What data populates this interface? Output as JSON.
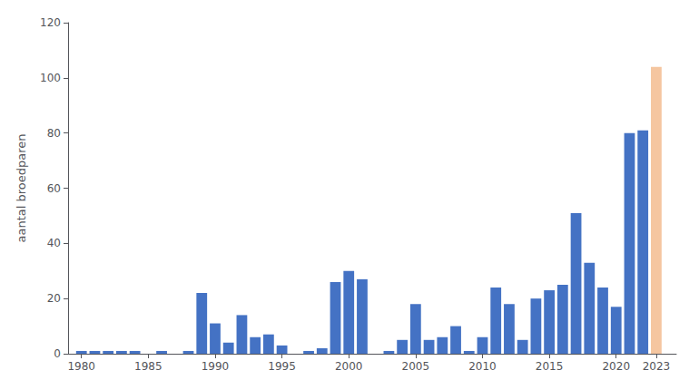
{
  "chart_data": {
    "type": "bar",
    "x": [
      1980,
      1981,
      1982,
      1983,
      1984,
      1985,
      1986,
      1987,
      1988,
      1989,
      1990,
      1991,
      1992,
      1993,
      1994,
      1995,
      1996,
      1997,
      1998,
      1999,
      2000,
      2001,
      2002,
      2003,
      2004,
      2005,
      2006,
      2007,
      2008,
      2009,
      2010,
      2011,
      2012,
      2013,
      2014,
      2015,
      2016,
      2017,
      2018,
      2019,
      2020,
      2021,
      2022,
      2023
    ],
    "values": [
      1,
      1,
      1,
      1,
      1,
      0,
      1,
      0,
      1,
      22,
      11,
      4,
      14,
      6,
      7,
      3,
      0,
      1,
      2,
      26,
      30,
      27,
      0,
      1,
      5,
      18,
      5,
      6,
      10,
      1,
      6,
      24,
      18,
      5,
      20,
      23,
      25,
      51,
      33,
      24,
      17,
      80,
      81,
      104
    ],
    "colors": [
      "#4472C4",
      "#4472C4",
      "#4472C4",
      "#4472C4",
      "#4472C4",
      "#4472C4",
      "#4472C4",
      "#4472C4",
      "#4472C4",
      "#4472C4",
      "#4472C4",
      "#4472C4",
      "#4472C4",
      "#4472C4",
      "#4472C4",
      "#4472C4",
      "#4472C4",
      "#4472C4",
      "#4472C4",
      "#4472C4",
      "#4472C4",
      "#4472C4",
      "#4472C4",
      "#4472C4",
      "#4472C4",
      "#4472C4",
      "#4472C4",
      "#4472C4",
      "#4472C4",
      "#4472C4",
      "#4472C4",
      "#4472C4",
      "#4472C4",
      "#4472C4",
      "#4472C4",
      "#4472C4",
      "#4472C4",
      "#4472C4",
      "#4472C4",
      "#4472C4",
      "#4472C4",
      "#4472C4",
      "#4472C4",
      "#F5C6A0"
    ],
    "ylabel": "aantal broedparen",
    "xlim": [
      1979.0,
      2024.5
    ],
    "xticks": [
      1980,
      1985,
      1990,
      1995,
      2000,
      2005,
      2010,
      2015,
      2020,
      2023
    ],
    "ylim": [
      0,
      120
    ],
    "yticks": [
      0,
      20,
      40,
      60,
      80,
      100,
      120
    ],
    "grid": false
  }
}
